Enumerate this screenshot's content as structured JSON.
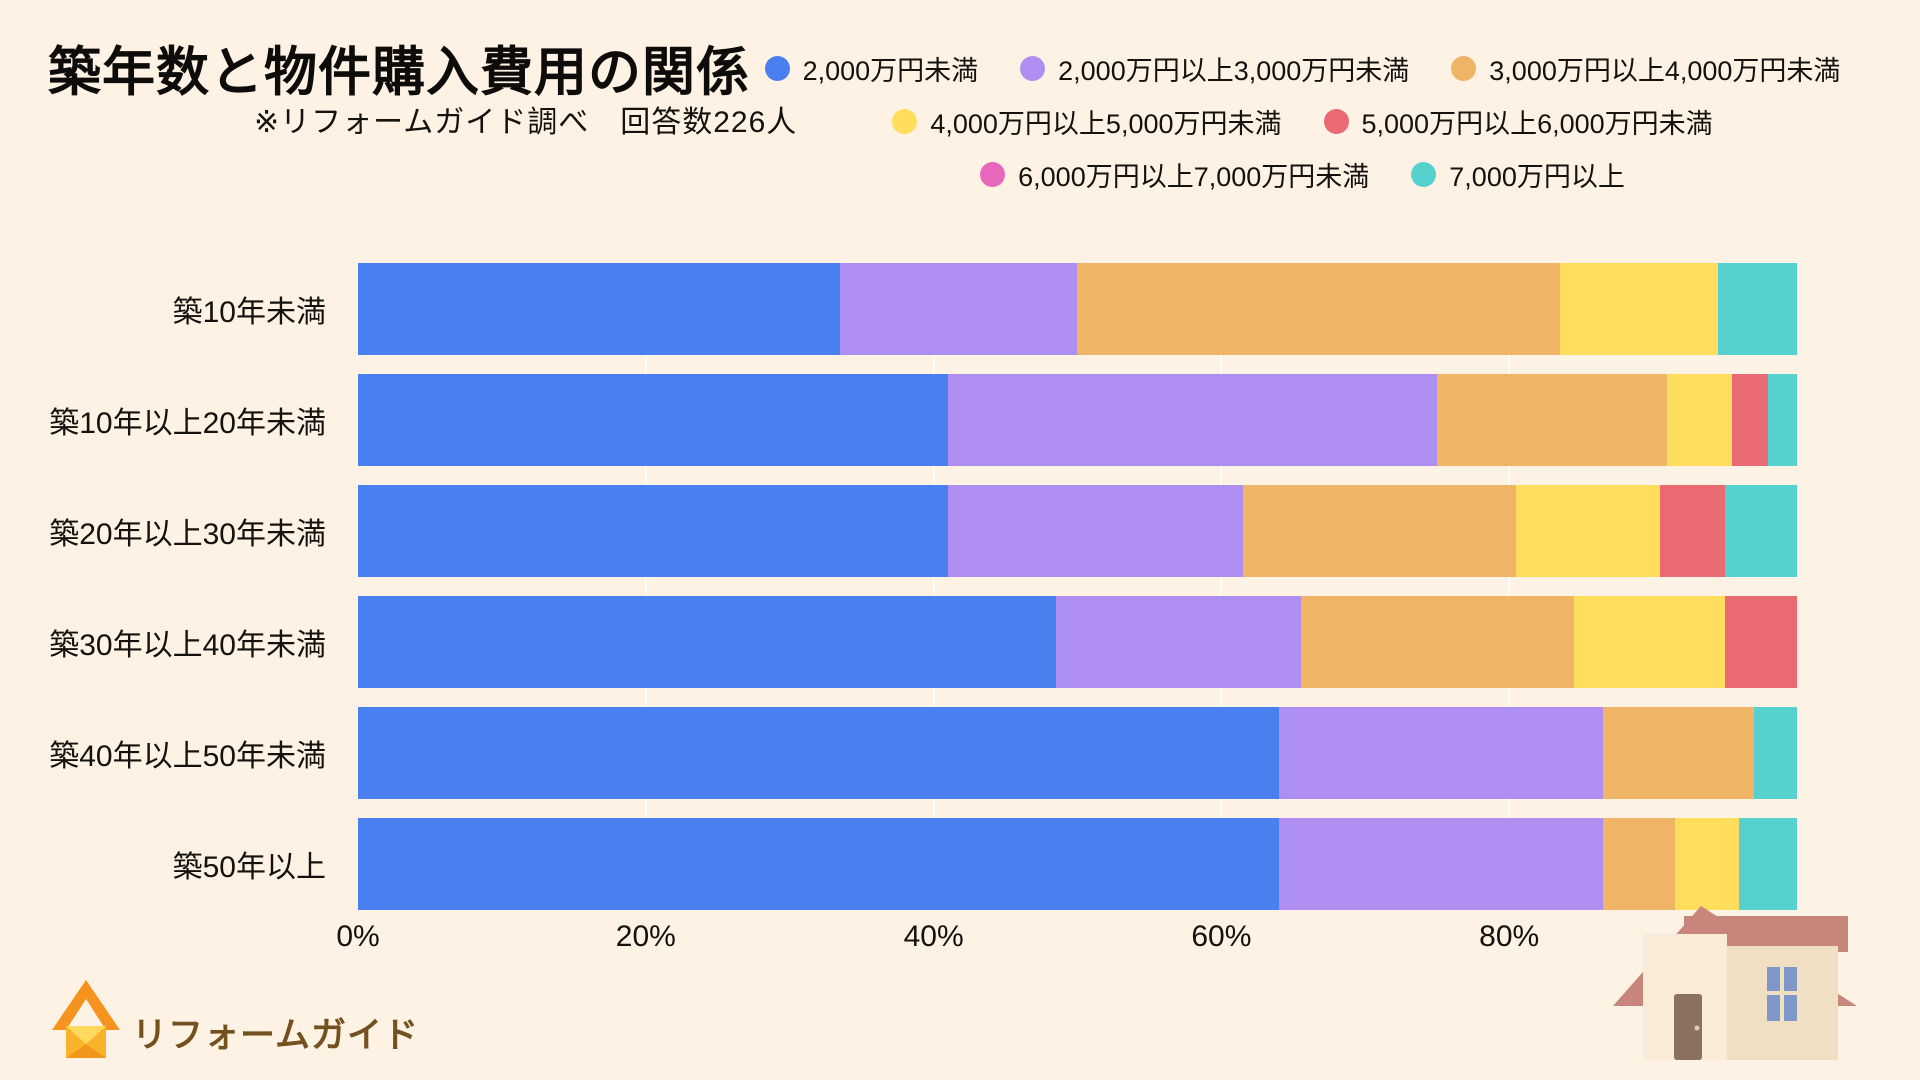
{
  "header": {
    "title": "築年数と物件購入費用の関係",
    "subtitle": "※リフォームガイド調べ　回答数226人"
  },
  "chart_data": {
    "type": "bar",
    "orientation": "horizontal",
    "stacked": true,
    "unit": "%",
    "title": "築年数と物件購入費用の関係",
    "source_note": "※リフォームガイド調べ　回答数226人",
    "respondents": 226,
    "categories": [
      "築10年未満",
      "築10年以上20年未満",
      "築20年以上30年未満",
      "築30年以上40年未満",
      "築40年以上50年未満",
      "築50年以上"
    ],
    "series": [
      {
        "name": "2,000万円未満",
        "color": "#4a7ff0",
        "values": [
          33.5,
          41,
          41,
          48.5,
          64,
          64
        ]
      },
      {
        "name": "2,000万円以上3,000万円未満",
        "color": "#ae8ff1",
        "values": [
          16.5,
          34,
          20.5,
          17,
          22.5,
          22.5
        ]
      },
      {
        "name": "3,000万円以上4,000万円未満",
        "color": "#f0b467",
        "values": [
          33.5,
          16,
          19,
          19,
          10.5,
          5
        ]
      },
      {
        "name": "4,000万円以上5,000万円未満",
        "color": "#ffde5e",
        "values": [
          11,
          4.5,
          10,
          10.5,
          0,
          4.5
        ]
      },
      {
        "name": "5,000万円以上6,000万円未満",
        "color": "#e96a73",
        "values": [
          0,
          2.5,
          4.5,
          5,
          0,
          0
        ]
      },
      {
        "name": "6,000万円以上7,000万円未満",
        "color": "#e768bb",
        "values": [
          0,
          0,
          0,
          0,
          0,
          0
        ]
      },
      {
        "name": "7,000万円以上",
        "color": "#56d1cd",
        "values": [
          5.5,
          2,
          5,
          0,
          3,
          4
        ]
      }
    ],
    "x_ticks": [
      "0%",
      "20%",
      "40%",
      "60%",
      "80%",
      "100%"
    ],
    "xlim": [
      0,
      100
    ],
    "grid": true,
    "legend_position": "top-right",
    "legend_rows": [
      [
        0,
        1,
        2
      ],
      [
        3,
        4
      ],
      [
        5,
        6
      ]
    ]
  },
  "footer": {
    "logo_text": "リフォームガイド"
  },
  "colors": {
    "background": "#fdf2e4",
    "text": "#14110e",
    "logo_brown": "#73511f",
    "logo_orange": "#f6921e",
    "logo_gold": "#f9b32a",
    "house_roof": "#c8857c",
    "house_wall_left": "#f8ecd9",
    "house_wall_right": "#f1dfc4",
    "house_door": "#8b7161",
    "house_window": "#7e97c8"
  }
}
